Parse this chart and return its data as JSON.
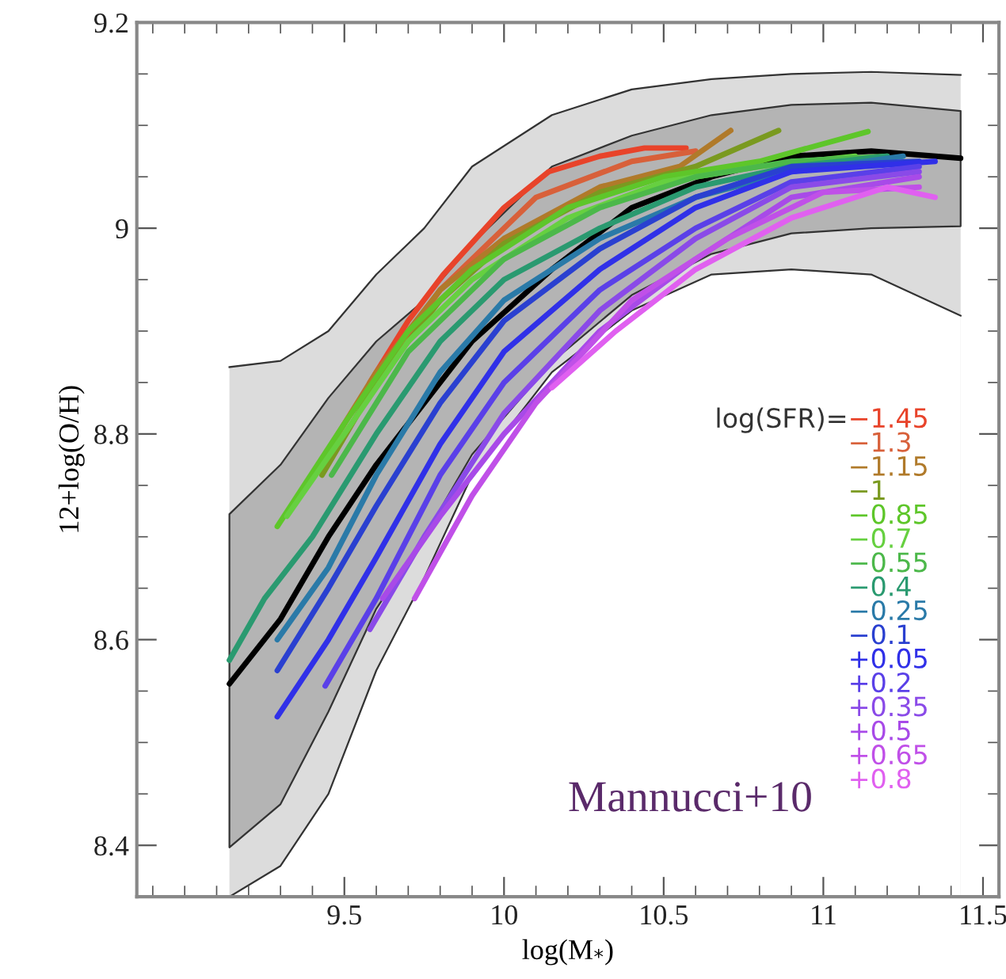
{
  "chart_data": {
    "type": "line",
    "xlabel": "log(M$_{*}$)",
    "ylabel": "12+log(O/H)",
    "xlim": [
      8.85,
      11.55
    ],
    "ylim": [
      8.35,
      9.2
    ],
    "xticks": [
      9.5,
      10,
      10.5,
      11,
      11.5
    ],
    "yticks": [
      8.4,
      8.6,
      8.8,
      9,
      9.2
    ],
    "grid": false,
    "legend": "center right",
    "legend_title": "log(SFR)=",
    "annotations": [
      "Mannucci+10"
    ],
    "series": [
      {
        "type": "area",
        "color": "#dcdcdc",
        "x": [
          9.14,
          9.3,
          9.45,
          9.6,
          9.75,
          9.9,
          10.15,
          10.4,
          10.65,
          10.9,
          11.15,
          11.43
        ],
        "values": [
          8.865,
          8.871,
          8.9,
          8.955,
          9.0,
          9.06,
          9.11,
          9.135,
          9.145,
          9.15,
          9.152,
          9.149
        ]
      },
      {
        "type": "area",
        "color": "#ffffff",
        "x": [
          9.14,
          9.3,
          9.45,
          9.6,
          9.75,
          9.9,
          10.15,
          10.4,
          10.65,
          10.9,
          11.15,
          11.43
        ],
        "values": [
          8.35,
          8.38,
          8.45,
          8.57,
          8.66,
          8.76,
          8.86,
          8.92,
          8.955,
          8.96,
          8.955,
          8.915
        ]
      },
      {
        "color": "#000000",
        "x": [
          9.14,
          9.3,
          9.45,
          9.6,
          9.75,
          9.9,
          10.15,
          10.4,
          10.65,
          10.9,
          11.15,
          11.43
        ],
        "values": [
          8.557,
          8.62,
          8.7,
          8.77,
          8.83,
          8.89,
          8.96,
          9.02,
          9.05,
          9.07,
          9.075,
          9.068
        ],
        "lower": [
          8.398,
          8.44,
          8.53,
          8.63,
          8.7,
          8.78,
          8.87,
          8.935,
          8.975,
          8.995,
          9.0,
          9.002
        ],
        "upper": [
          8.722,
          8.77,
          8.835,
          8.89,
          8.93,
          8.985,
          9.06,
          9.09,
          9.11,
          9.12,
          9.122,
          9.114
        ]
      },
      {
        "name": "−1.45",
        "color": "#e8432a",
        "x": [
          9.58,
          9.7,
          9.81,
          10.0,
          10.14,
          10.3,
          10.44,
          10.57
        ],
        "values": [
          8.85,
          8.91,
          8.955,
          9.02,
          9.055,
          9.07,
          9.078,
          9.078
        ]
      },
      {
        "name": "−1.3",
        "color": "#d8603a",
        "x": [
          9.55,
          9.8,
          10.1,
          10.4,
          10.6
        ],
        "values": [
          8.83,
          8.94,
          9.03,
          9.065,
          9.075
        ]
      },
      {
        "name": "−1.15",
        "color": "#b07a2a",
        "x": [
          9.44,
          9.6,
          9.8,
          10.0,
          10.3,
          10.55,
          10.71
        ],
        "values": [
          8.78,
          8.86,
          8.94,
          8.99,
          9.04,
          9.06,
          9.095
        ]
      },
      {
        "name": "−1",
        "color": "#7a9a20",
        "x": [
          9.43,
          9.6,
          9.8,
          10.0,
          10.3,
          10.6,
          10.86
        ],
        "values": [
          8.76,
          8.85,
          8.93,
          8.985,
          9.035,
          9.06,
          9.095
        ]
      },
      {
        "name": "−0.85",
        "color": "#5ec62a",
        "x": [
          9.29,
          9.5,
          9.7,
          9.9,
          10.2,
          10.5,
          10.8,
          11.14
        ],
        "values": [
          8.71,
          8.81,
          8.9,
          8.96,
          9.02,
          9.05,
          9.065,
          9.094
        ]
      },
      {
        "name": "−0.7",
        "color": "#66d040",
        "x": [
          9.32,
          9.5,
          9.7,
          9.9,
          10.2,
          10.5,
          10.8,
          11.1
        ],
        "values": [
          8.72,
          8.8,
          8.89,
          8.95,
          9.01,
          9.045,
          9.06,
          9.07
        ]
      },
      {
        "name": "−0.55",
        "color": "#4cb84a",
        "x": [
          9.46,
          9.7,
          10.0,
          10.3,
          10.6,
          10.9,
          11.2
        ],
        "values": [
          8.76,
          8.88,
          8.97,
          9.02,
          9.05,
          9.065,
          9.07
        ]
      },
      {
        "name": "−0.4",
        "color": "#2a9a70",
        "x": [
          9.14,
          9.25,
          9.4,
          9.6,
          9.8,
          10.0,
          10.3,
          10.6,
          10.9,
          11.2
        ],
        "values": [
          8.58,
          8.64,
          8.7,
          8.8,
          8.89,
          8.95,
          9.0,
          9.04,
          9.06,
          9.07
        ]
      },
      {
        "name": "−0.25",
        "color": "#2a7aa8",
        "x": [
          9.29,
          9.45,
          9.6,
          9.8,
          10.0,
          10.3,
          10.6,
          10.9,
          11.25
        ],
        "values": [
          8.6,
          8.67,
          8.76,
          8.86,
          8.93,
          8.99,
          9.03,
          9.055,
          9.07
        ]
      },
      {
        "name": "−0.1",
        "color": "#2a40d0",
        "x": [
          9.29,
          9.45,
          9.6,
          9.8,
          10.0,
          10.3,
          10.6,
          10.9,
          11.3
        ],
        "values": [
          8.57,
          8.65,
          8.73,
          8.83,
          8.91,
          8.98,
          9.03,
          9.06,
          9.065
        ]
      },
      {
        "name": "+0.05",
        "color": "#3030e8",
        "x": [
          9.29,
          9.45,
          9.6,
          9.8,
          10.0,
          10.3,
          10.6,
          10.9,
          11.35
        ],
        "values": [
          8.525,
          8.6,
          8.68,
          8.79,
          8.88,
          8.96,
          9.02,
          9.055,
          9.065
        ]
      },
      {
        "name": "+0.2",
        "color": "#5a40e8",
        "x": [
          9.44,
          9.6,
          9.8,
          10.0,
          10.3,
          10.6,
          10.9,
          11.3
        ],
        "values": [
          8.555,
          8.64,
          8.76,
          8.85,
          8.94,
          9.0,
          9.045,
          9.06
        ]
      },
      {
        "name": "+0.35",
        "color": "#8a4ae8",
        "x": [
          9.58,
          9.75,
          10.0,
          10.3,
          10.6,
          10.9,
          11.3
        ],
        "values": [
          8.61,
          8.7,
          8.82,
          8.92,
          8.99,
          9.04,
          9.055
        ]
      },
      {
        "name": "+0.5",
        "color": "#a84ae8",
        "x": [
          9.62,
          9.8,
          10.0,
          10.3,
          10.6,
          10.9,
          11.3
        ],
        "values": [
          8.64,
          8.72,
          8.8,
          8.9,
          8.97,
          9.03,
          9.05
        ]
      },
      {
        "name": "+0.65",
        "color": "#c050e8",
        "x": [
          9.72,
          9.9,
          10.1,
          10.4,
          10.7,
          11.0,
          11.3
        ],
        "values": [
          8.64,
          8.74,
          8.83,
          8.93,
          8.99,
          9.035,
          9.04
        ]
      },
      {
        "name": "+0.8",
        "color": "#e060f0",
        "x": [
          10.15,
          10.35,
          10.6,
          10.9,
          11.2,
          11.35
        ],
        "values": [
          8.845,
          8.9,
          8.96,
          9.01,
          9.04,
          9.03
        ]
      }
    ]
  }
}
